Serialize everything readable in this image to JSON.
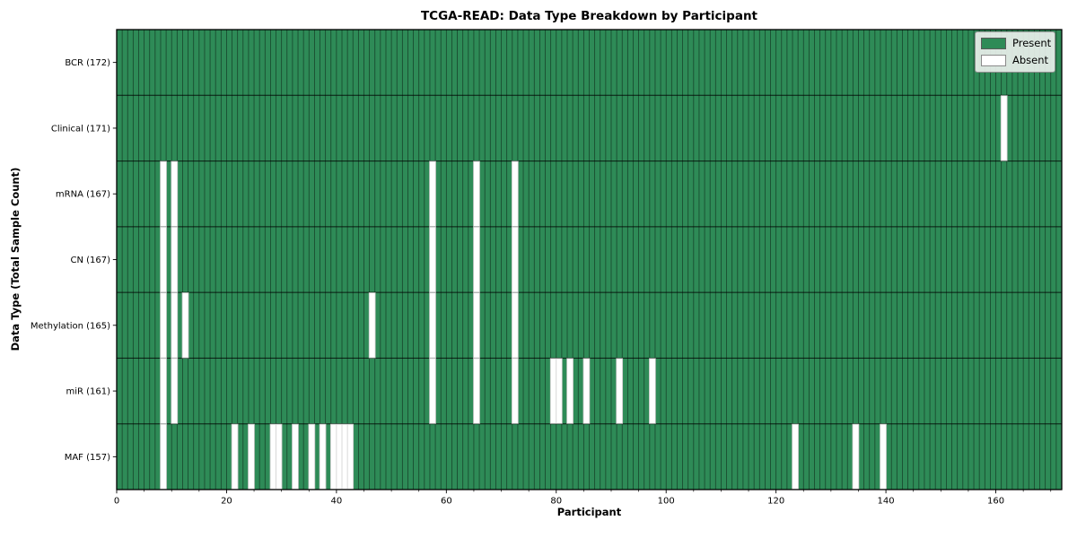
{
  "chart_data": {
    "type": "heatmap",
    "title": "TCGA-READ: Data Type Breakdown by Participant",
    "xlabel": "Participant",
    "ylabel": "Data Type (Total Sample Count)",
    "n_participants": 172,
    "x_major_ticks": [
      0,
      20,
      40,
      60,
      80,
      100,
      120,
      140,
      160
    ],
    "x_minor_tick_step": 5,
    "grid": "cell-edges",
    "legend": {
      "position": "upper right",
      "present_label": "Present",
      "absent_label": "Absent"
    },
    "colors": {
      "present": "#2e8b57",
      "absent": "#ffffff",
      "cell_edge": "rgba(0,0,0,0.5)",
      "row_line": "rgba(0,0,0,0.8)",
      "absent_edge": "#c6c6c6",
      "plot_border": "#000000",
      "legend_bg": "#e9efe a",
      "text": "#000000"
    },
    "rows": [
      {
        "name": "BCR",
        "count": 172,
        "label": "BCR (172)",
        "absent": []
      },
      {
        "name": "Clinical",
        "count": 171,
        "label": "Clinical (171)",
        "absent": [
          161
        ]
      },
      {
        "name": "mRNA",
        "count": 167,
        "label": "mRNA (167)",
        "absent": [
          8,
          10,
          57,
          65,
          72
        ]
      },
      {
        "name": "CN",
        "count": 167,
        "label": "CN (167)",
        "absent": [
          8,
          10,
          57,
          65,
          72
        ]
      },
      {
        "name": "Methylation",
        "count": 165,
        "label": "Methylation (165)",
        "absent": [
          8,
          10,
          12,
          46,
          57,
          65,
          72
        ]
      },
      {
        "name": "miR",
        "count": 161,
        "label": "miR (161)",
        "absent": [
          8,
          10,
          57,
          65,
          72,
          79,
          80,
          82,
          85,
          91,
          97
        ]
      },
      {
        "name": "MAF",
        "count": 157,
        "label": "MAF (157)",
        "absent": [
          8,
          21,
          24,
          28,
          29,
          32,
          35,
          37,
          39,
          40,
          41,
          42,
          123,
          134,
          139
        ]
      }
    ]
  }
}
